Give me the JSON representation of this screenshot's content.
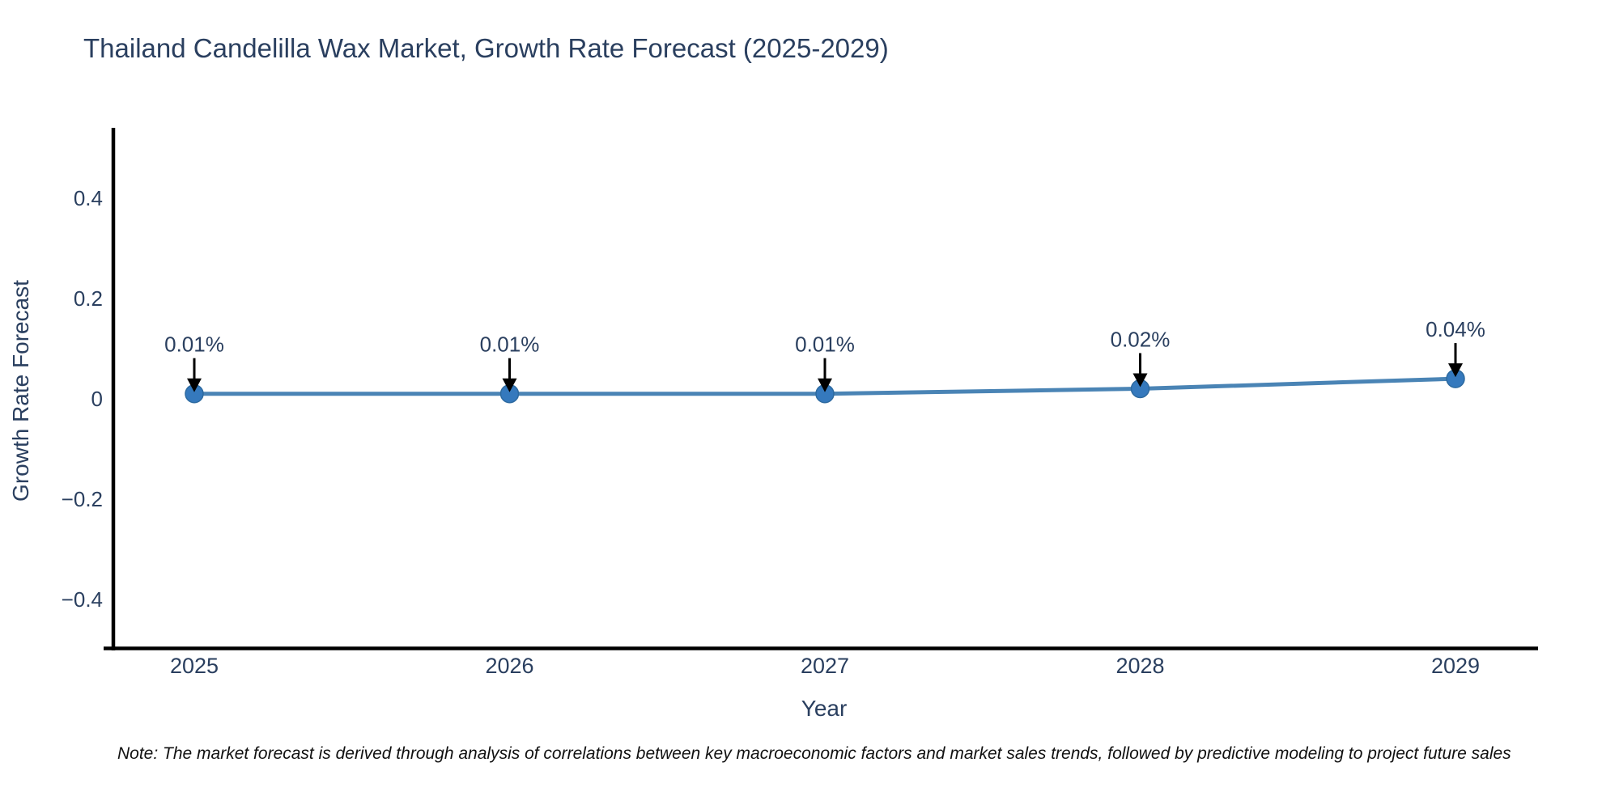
{
  "title": "Thailand Candelilla Wax Market, Growth Rate Forecast (2025-2029)",
  "note": "Note: The market forecast is derived through analysis of correlations between key macroeconomic factors and market sales trends, followed by predictive modeling to project future sales",
  "chart_data": {
    "type": "line",
    "title": "Thailand Candelilla Wax Market, Growth Rate Forecast (2025-2029)",
    "xlabel": "Year",
    "ylabel": "Growth Rate Forecast",
    "categories": [
      "2025",
      "2026",
      "2027",
      "2028",
      "2029"
    ],
    "values": [
      0.01,
      0.01,
      0.01,
      0.02,
      0.04
    ],
    "point_labels": [
      "0.01%",
      "0.01%",
      "0.01%",
      "0.02%",
      "0.04%"
    ],
    "yticks": {
      "values": [
        0.4,
        0.2,
        0,
        -0.2,
        -0.4
      ],
      "labels": [
        "0.4",
        "0.2",
        "0",
        "−0.2",
        "−0.4"
      ]
    },
    "ylim": [
      -0.5,
      0.54
    ],
    "grid": false,
    "legend": null,
    "marker": "circle",
    "annotation_arrows": true,
    "colors": {
      "line": "#4a84b5",
      "marker_fill": "#3579bd",
      "marker_edge": "#2d6aa0",
      "arrow": "#000000",
      "text": "#2a3f5f",
      "axis": "#000000",
      "note_text": "#111111",
      "background": "#ffffff"
    }
  }
}
